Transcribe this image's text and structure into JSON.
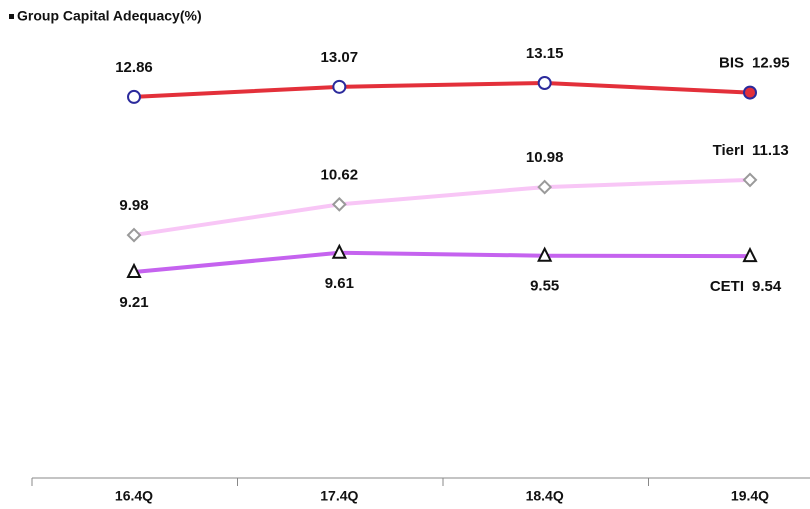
{
  "chart_data": {
    "type": "line",
    "title": "Group Capital Adequacy(%)",
    "categories": [
      "16.4Q",
      "17.4Q",
      "18.4Q",
      "19.4Q"
    ],
    "series": [
      {
        "name": "BIS",
        "color": "#e3303a",
        "marker": "circle",
        "values": [
          12.86,
          13.07,
          13.15,
          12.95
        ]
      },
      {
        "name": "TierI",
        "color": "#f8c6f6",
        "marker": "diamond",
        "values": [
          9.98,
          10.62,
          10.98,
          11.13
        ]
      },
      {
        "name": "CETI",
        "color": "#c563ef",
        "marker": "triangle",
        "values": [
          9.21,
          9.61,
          9.55,
          9.54
        ]
      }
    ]
  }
}
